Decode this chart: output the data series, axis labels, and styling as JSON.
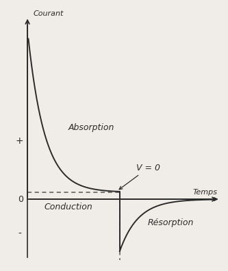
{
  "background_color": "#f0ede8",
  "plot_bg_color": "#f0ede8",
  "axis_color": "#2a2a2a",
  "curve_color": "#2a2a2a",
  "dashed_color": "#555555",
  "text_color": "#2a2a2a",
  "title_courant": "Courant",
  "title_temps": "Temps",
  "label_absorption": "Absorption",
  "label_conduction": "Conduction",
  "label_resorption": "Résorption",
  "label_v0": "V = 0",
  "label_plus": "+",
  "label_minus": "-",
  "label_zero": "0",
  "t_switch": 5.0,
  "conduction_level": 0.12,
  "absorption_amplitude": 2.8,
  "absorption_decay": 1.1,
  "resorption_magnitude": 0.9,
  "resorption_decay": 1.0,
  "xlim_min": -0.5,
  "xlim_max": 10.5,
  "ylim_min": -1.1,
  "ylim_max": 3.3
}
